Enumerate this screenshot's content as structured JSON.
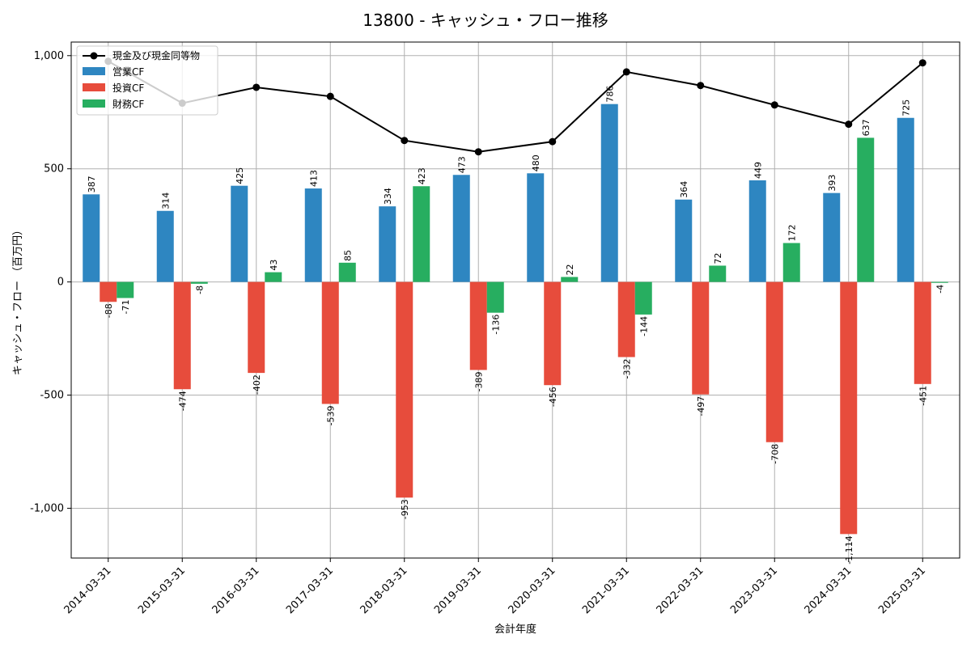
{
  "chart_data": {
    "type": "bar",
    "title": "13800 - キャッシュ・フロー推移",
    "xlabel": "会計年度",
    "ylabel": "キャッシュ・フロー （百万円）",
    "ylim": [
      -1220,
      1060
    ],
    "yticks": [
      -1000,
      -500,
      0,
      500,
      1000
    ],
    "ytick_labels": [
      "-1,000",
      "-500",
      "0",
      "500",
      "1,000"
    ],
    "grid": true,
    "legend_position": "top-left",
    "categories": [
      "2014-03-31",
      "2015-03-31",
      "2016-03-31",
      "2017-03-31",
      "2018-03-31",
      "2019-03-31",
      "2020-03-31",
      "2021-03-31",
      "2022-03-31",
      "2023-03-31",
      "2024-03-31",
      "2025-03-31"
    ],
    "series": [
      {
        "name": "営業CF",
        "kind": "bar",
        "color": "#2e86c1",
        "values": [
          387,
          314,
          425,
          413,
          334,
          473,
          480,
          786,
          364,
          449,
          393,
          725
        ],
        "labels": [
          "387",
          "314",
          "425",
          "413",
          "334",
          "473",
          "480",
          "786",
          "364",
          "449",
          "393",
          "725"
        ]
      },
      {
        "name": "投資CF",
        "kind": "bar",
        "color": "#e74c3c",
        "values": [
          -88,
          -474,
          -402,
          -539,
          -953,
          -389,
          -456,
          -332,
          -497,
          -708,
          -1114,
          -451
        ],
        "labels": [
          "-88",
          "-474",
          "-402",
          "-539",
          "-953",
          "-389",
          "-456",
          "-332",
          "-497",
          "-708",
          "-1,114",
          "-451"
        ]
      },
      {
        "name": "財務CF",
        "kind": "bar",
        "color": "#27ae60",
        "values": [
          -71,
          -8,
          43,
          85,
          423,
          -136,
          22,
          -144,
          72,
          172,
          637,
          -4
        ],
        "labels": [
          "-71",
          "-8",
          "43",
          "85",
          "423",
          "-136",
          "22",
          "-144",
          "72",
          "172",
          "637",
          "-4"
        ]
      },
      {
        "name": "現金及び現金同等物",
        "kind": "line",
        "color": "#000000",
        "values": [
          975,
          790,
          860,
          820,
          625,
          575,
          620,
          928,
          868,
          782,
          697,
          968
        ]
      }
    ]
  }
}
